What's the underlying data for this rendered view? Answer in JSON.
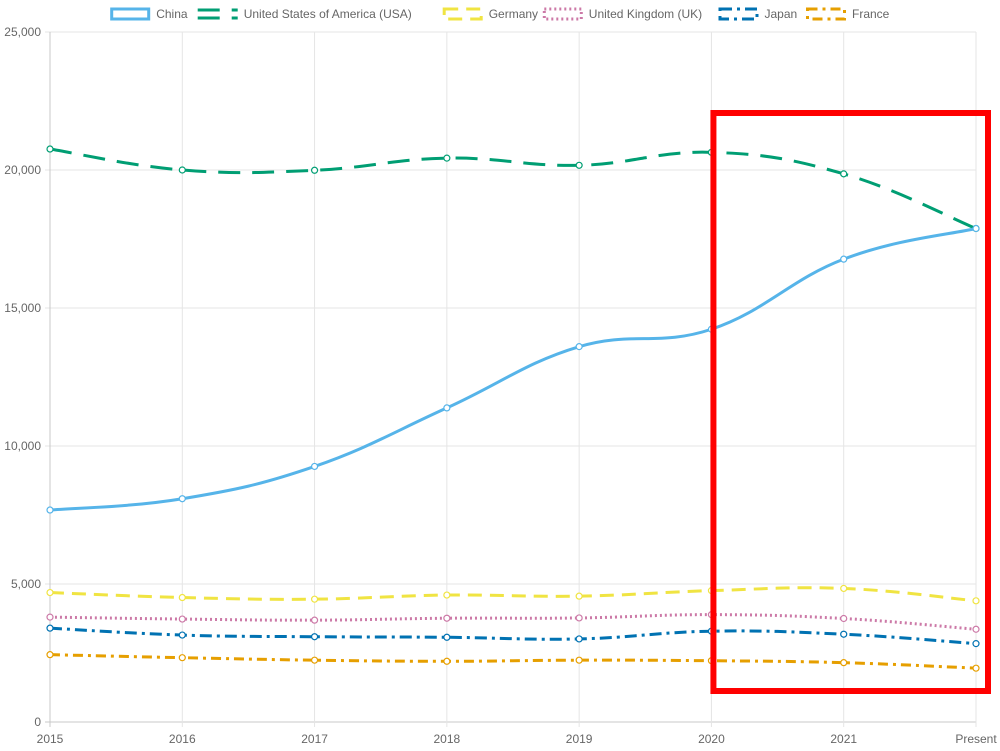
{
  "chart_data": {
    "type": "line",
    "x": [
      "2015",
      "2016",
      "2017",
      "2018",
      "2019",
      "2020",
      "2021",
      "Present"
    ],
    "ylim": [
      0,
      25000
    ],
    "yticks": [
      "0",
      "5,000",
      "10,000",
      "15,000",
      "20,000",
      "25,000"
    ],
    "ytick_values": [
      0,
      5000,
      10000,
      15000,
      20000,
      25000
    ],
    "grid": true,
    "legend_position": "top",
    "series": [
      {
        "name": "China",
        "color": "#56b4e9",
        "dash": "solid",
        "values": [
          7680,
          8090,
          9260,
          11380,
          13600,
          14230,
          16770,
          17880
        ]
      },
      {
        "name": "United States of America (USA)",
        "color": "#009e73",
        "dash": "longdash",
        "values": [
          20760,
          20000,
          19990,
          20430,
          20170,
          20640,
          19860,
          17880
        ]
      },
      {
        "name": "Germany",
        "color": "#f0e442",
        "dash": "dash",
        "values": [
          4690,
          4510,
          4450,
          4600,
          4560,
          4760,
          4840,
          4390
        ]
      },
      {
        "name": "United Kingdom (UK)",
        "color": "#cc79a7",
        "dash": "dot",
        "values": [
          3800,
          3730,
          3690,
          3760,
          3770,
          3890,
          3750,
          3360
        ]
      },
      {
        "name": "Japan",
        "color": "#0072b2",
        "dash": "dashdot",
        "values": [
          3400,
          3150,
          3090,
          3070,
          3010,
          3290,
          3180,
          2840
        ]
      },
      {
        "name": "France",
        "color": "#e69f00",
        "dash": "dashdot2",
        "values": [
          2440,
          2330,
          2240,
          2200,
          2240,
          2220,
          2150,
          1950
        ]
      }
    ],
    "annotations": [
      {
        "type": "highlight-box",
        "color": "#ff0000",
        "from_x": "2020",
        "to_x": "Present"
      }
    ]
  }
}
